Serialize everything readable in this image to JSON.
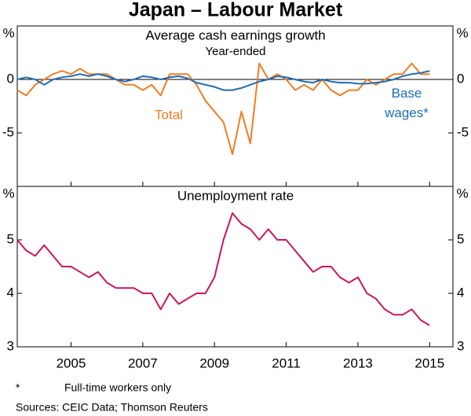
{
  "title": "Japan – Labour Market",
  "footnote_mark": "*",
  "footnote": "Full-time workers only",
  "sources": "Sources:   CEIC Data; Thomson Reuters",
  "chart_data": [
    {
      "type": "line",
      "title": "Average cash earnings growth",
      "subtitle": "Year-ended",
      "y_unit": "%",
      "ylim": [
        -10,
        5
      ],
      "yticks": [
        -5,
        0
      ],
      "zero_line": true,
      "x": [
        2003.5,
        2003.75,
        2004,
        2004.25,
        2004.5,
        2004.75,
        2005,
        2005.25,
        2005.5,
        2005.75,
        2006,
        2006.25,
        2006.5,
        2006.75,
        2007,
        2007.25,
        2007.5,
        2007.75,
        2008,
        2008.25,
        2008.5,
        2008.75,
        2009,
        2009.25,
        2009.5,
        2009.75,
        2010,
        2010.25,
        2010.5,
        2010.75,
        2011,
        2011.25,
        2011.5,
        2011.75,
        2012,
        2012.25,
        2012.5,
        2012.75,
        2013,
        2013.25,
        2013.5,
        2013.75,
        2014,
        2014.25,
        2014.5,
        2014.75,
        2015
      ],
      "series": [
        {
          "name": "Total",
          "color": "#f07d22",
          "values": [
            -1,
            -1.5,
            -0.5,
            0,
            0.5,
            0.8,
            0.5,
            1,
            0.5,
            0.5,
            0.5,
            0,
            -0.5,
            -0.5,
            -1,
            -0.5,
            -1.5,
            0.5,
            0.5,
            0.5,
            -0.5,
            -2,
            -3,
            -4,
            -7,
            -3,
            -6,
            1.5,
            0,
            0.5,
            0,
            -1,
            -0.5,
            -1,
            0,
            -1,
            -1.5,
            -1,
            -1,
            0,
            -0.5,
            0,
            0.5,
            0.5,
            1.5,
            0.5,
            0.5
          ]
        },
        {
          "name": "Base wages*",
          "color": "#1f6db3",
          "values": [
            0,
            0.2,
            0,
            -0.5,
            0,
            0.2,
            0.3,
            0.5,
            0.3,
            0.5,
            0.3,
            0,
            -0.2,
            0,
            0.3,
            0.2,
            0,
            0.2,
            0.3,
            0.1,
            -0.3,
            -0.5,
            -0.7,
            -1,
            -1,
            -0.8,
            -0.5,
            -0.2,
            0,
            0.3,
            0.2,
            0,
            -0.2,
            -0.3,
            0,
            -0.2,
            -0.3,
            -0.3,
            -0.4,
            -0.4,
            -0.3,
            -0.2,
            0,
            0.3,
            0.5,
            0.6,
            0.8
          ]
        }
      ]
    },
    {
      "type": "line",
      "title": "Unemployment rate",
      "y_unit": "%",
      "ylim": [
        3,
        6
      ],
      "yticks": [
        3,
        4,
        5
      ],
      "xlim": [
        2003.5,
        2015.65
      ],
      "xticks": [
        2005,
        2007,
        2009,
        2011,
        2013,
        2015
      ],
      "x": [
        2003.5,
        2003.75,
        2004,
        2004.25,
        2004.5,
        2004.75,
        2005,
        2005.25,
        2005.5,
        2005.75,
        2006,
        2006.25,
        2006.5,
        2006.75,
        2007,
        2007.25,
        2007.5,
        2007.75,
        2008,
        2008.25,
        2008.5,
        2008.75,
        2009,
        2009.25,
        2009.5,
        2009.75,
        2010,
        2010.25,
        2010.5,
        2010.75,
        2011,
        2011.25,
        2011.5,
        2011.75,
        2012,
        2012.25,
        2012.5,
        2012.75,
        2013,
        2013.25,
        2013.5,
        2013.75,
        2014,
        2014.25,
        2014.5,
        2014.75,
        2015
      ],
      "series": [
        {
          "name": "Unemployment rate",
          "color": "#c8175d",
          "values": [
            5.0,
            4.8,
            4.7,
            4.9,
            4.7,
            4.5,
            4.5,
            4.4,
            4.3,
            4.4,
            4.2,
            4.1,
            4.1,
            4.1,
            4.0,
            4.0,
            3.7,
            4.0,
            3.8,
            3.9,
            4.0,
            4.0,
            4.3,
            5.0,
            5.5,
            5.3,
            5.2,
            5.0,
            5.2,
            5.0,
            5.0,
            4.8,
            4.6,
            4.4,
            4.5,
            4.5,
            4.3,
            4.2,
            4.3,
            4.0,
            3.9,
            3.7,
            3.6,
            3.6,
            3.7,
            3.5,
            3.4
          ]
        }
      ]
    }
  ]
}
